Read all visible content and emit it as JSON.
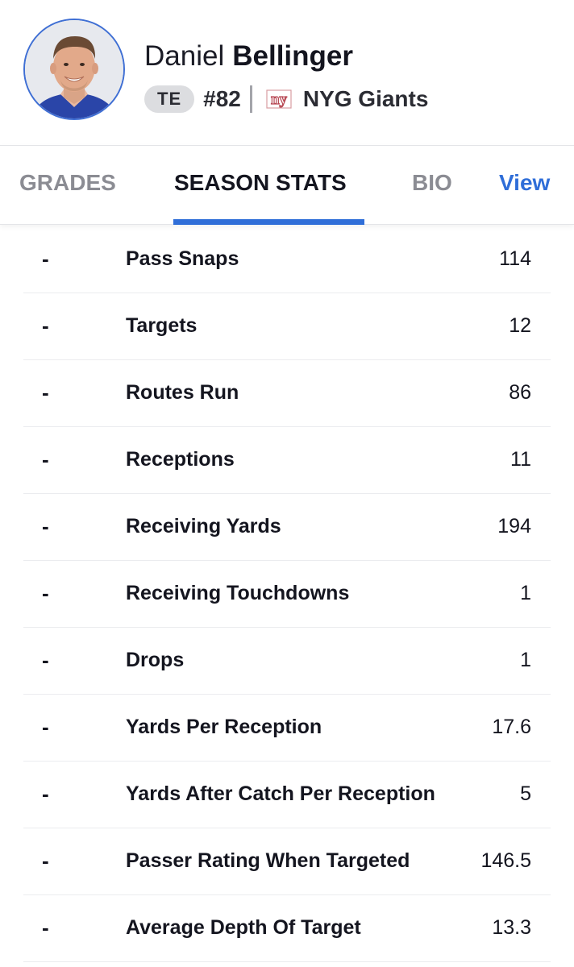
{
  "player": {
    "first_name": "Daniel",
    "last_name": "Bellinger",
    "position": "TE",
    "jersey": "#82",
    "team_logo_text": "ny",
    "team": "NYG Giants"
  },
  "tabs": {
    "grades": "GRADES",
    "season_stats": "SEASON STATS",
    "bio": "BIO",
    "view": "View"
  },
  "stats": [
    {
      "rank": "-",
      "label": "Pass Snaps",
      "value": "114"
    },
    {
      "rank": "-",
      "label": "Targets",
      "value": "12"
    },
    {
      "rank": "-",
      "label": "Routes Run",
      "value": "86"
    },
    {
      "rank": "-",
      "label": "Receptions",
      "value": "11"
    },
    {
      "rank": "-",
      "label": "Receiving Yards",
      "value": "194"
    },
    {
      "rank": "-",
      "label": "Receiving Touchdowns",
      "value": "1"
    },
    {
      "rank": "-",
      "label": "Drops",
      "value": "1"
    },
    {
      "rank": "-",
      "label": "Yards Per Reception",
      "value": "17.6"
    },
    {
      "rank": "-",
      "label": "Yards After Catch Per Reception",
      "value": "5"
    },
    {
      "rank": "-",
      "label": "Passer Rating When Targeted",
      "value": "146.5"
    },
    {
      "rank": "-",
      "label": "Average Depth Of Target",
      "value": "13.3"
    }
  ],
  "colors": {
    "accent": "#2f6ed8",
    "avatar_border": "#3f6fd4",
    "team_logo": "#b84a55"
  }
}
